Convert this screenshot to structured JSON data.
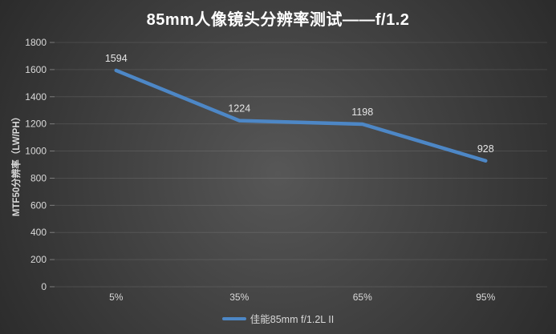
{
  "chart_data": {
    "type": "line",
    "title": "85mm人像镜头分辨率测试——f/1.2",
    "xlabel": "",
    "ylabel": "MTF50分辨率（LW/PH）",
    "categories": [
      "5%",
      "35%",
      "65%",
      "95%"
    ],
    "series": [
      {
        "name": "佳能85mm f/1.2L II",
        "values": [
          1594,
          1224,
          1198,
          928
        ]
      }
    ],
    "ylim": [
      0,
      1800
    ],
    "ytick_step": 200,
    "grid": "horizontal",
    "legend_position": "bottom",
    "data_labels_shown": true,
    "colors": {
      "line": "#4d87c6",
      "title_text": "#ffffff",
      "axis_text": "#d9d9d9",
      "data_label_text": "#e5e5e5",
      "gridline": "rgba(255,255,255,0.10)",
      "tick_mark": "rgba(255,255,255,0.35)",
      "background_center": "#575757",
      "background_mid": "#434343",
      "background_edge": "#2b2b2b"
    }
  }
}
